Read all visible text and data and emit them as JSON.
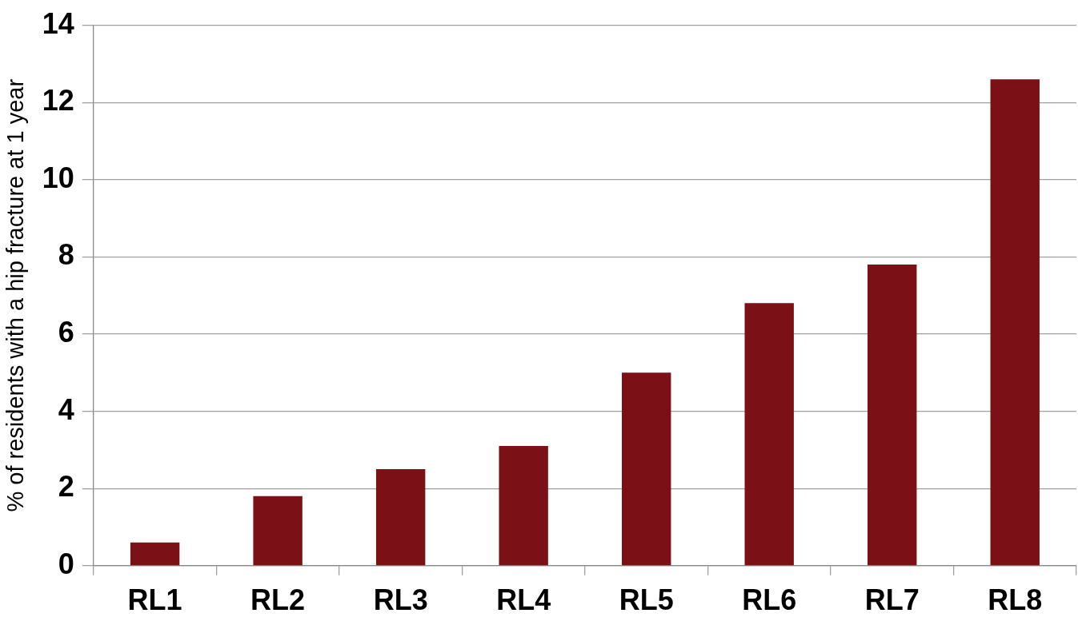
{
  "chart_data": {
    "type": "bar",
    "ylabel": "% of residents with a hip fracture at 1 year",
    "categories": [
      "RL1",
      "RL2",
      "RL3",
      "RL4",
      "RL5",
      "RL6",
      "RL7",
      "RL8"
    ],
    "values": [
      0.6,
      1.8,
      2.5,
      3.1,
      5.0,
      6.8,
      7.8,
      12.6
    ],
    "color": "#7b1116",
    "ylim": [
      0,
      14
    ],
    "yticks": [
      0,
      2,
      4,
      6,
      8,
      10,
      12,
      14
    ],
    "grid": "y",
    "legend": false
  }
}
